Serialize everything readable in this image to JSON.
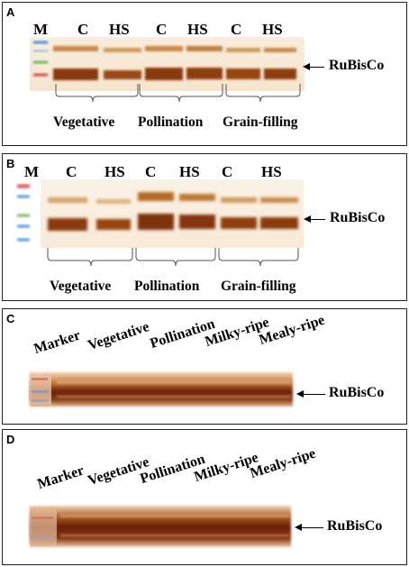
{
  "panel_a": {
    "letter": "A",
    "marker": "M",
    "lanes": [
      "C",
      "HS",
      "C",
      "HS",
      "C",
      "HS"
    ],
    "stages": [
      "Vegetative",
      "Pollination",
      "Grain-filling"
    ],
    "band_label": "RuBisCo"
  },
  "panel_b": {
    "letter": "B",
    "marker": "M",
    "lanes": [
      "C",
      "HS",
      "C",
      "HS",
      "C",
      "HS"
    ],
    "stages": [
      "Vegetative",
      "Pollination",
      "Grain-filling"
    ],
    "band_label": "RuBisCo"
  },
  "panel_c": {
    "letter": "C",
    "lanes": [
      "Marker",
      "Vegetative",
      "Pollination",
      "Milky-ripe",
      "Mealy-ripe"
    ],
    "band_label": "RuBisCo"
  },
  "panel_d": {
    "letter": "D",
    "lanes": [
      "Marker",
      "Vegetative",
      "Pollination",
      "Milky-ripe",
      "Mealy-ripe"
    ],
    "band_label": "RuBisCo"
  },
  "colors": {
    "band_dark": "#8a3a0c",
    "band_mid": "#b86a26",
    "band_light": "#d9a15e",
    "marker_blue": "#5aa0e6",
    "marker_green": "#7cc46a",
    "marker_red": "#e06060"
  }
}
